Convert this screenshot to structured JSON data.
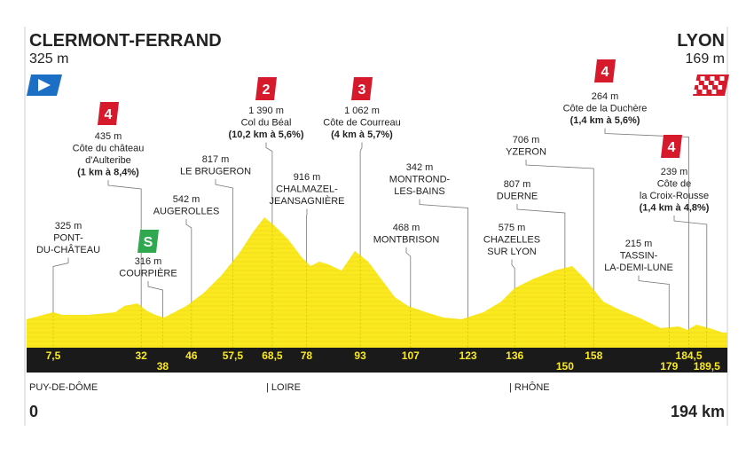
{
  "start": {
    "name": "CLERMONT-FERRAND",
    "altitude": "325 m",
    "km": 0
  },
  "finish": {
    "name": "LYON",
    "altitude": "169 m",
    "km": {
      "value": 194,
      "label": "194 km"
    }
  },
  "regions": [
    "PUY-DE-DÔME",
    "| LOIRE",
    "| RHÔNE"
  ],
  "points": [
    {
      "km": {
        "value": 7.5,
        "label": "7,5"
      },
      "lines": [
        "325 m",
        "PONT-",
        "DU-CHÂTEAU"
      ]
    },
    {
      "km": 32,
      "badge": "4",
      "lines": [
        "435 m",
        "Côte du château",
        "d'Aulteribe"
      ],
      "detail": "(1 km à 8,4%)"
    },
    {
      "km": 38,
      "badge": "S",
      "lines": [
        "316 m",
        "COURPIÈRE"
      ]
    },
    {
      "km": 46,
      "lines": [
        "542 m",
        "AUGEROLLES"
      ]
    },
    {
      "km": {
        "value": 57.5,
        "label": "57,5"
      },
      "lines": [
        "817 m",
        "LE BRUGERON"
      ]
    },
    {
      "km": {
        "value": 68.5,
        "label": "68,5"
      },
      "badge": "2",
      "lines": [
        "1 390 m",
        "Col du Béal"
      ],
      "detail": "(10,2 km à 5,6%)"
    },
    {
      "km": 78,
      "lines": [
        "916 m",
        "CHALMAZEL-",
        "JEANSAGNIÈRE"
      ]
    },
    {
      "km": 93,
      "badge": "3",
      "lines": [
        "1 062 m",
        "Côte de Courreau"
      ],
      "detail": "(4 km à 5,7%)"
    },
    {
      "km": 107,
      "lines": [
        "468 m",
        "MONTBRISON"
      ]
    },
    {
      "km": 123,
      "lines": [
        "342 m",
        "MONTROND-",
        "LES-BAINS"
      ]
    },
    {
      "km": 136,
      "lines": [
        "575 m",
        "CHAZELLES",
        "SUR LYON"
      ]
    },
    {
      "km": 150,
      "lines": [
        "807 m",
        "DUERNE"
      ]
    },
    {
      "km": 158,
      "lines": [
        "706 m",
        "YZERON"
      ]
    },
    {
      "km": 179,
      "lines": [
        "215 m",
        "TASSIN-",
        "LA-DEMI-LUNE"
      ]
    },
    {
      "km": {
        "value": 184.5,
        "label": "184,5"
      },
      "badge": "4",
      "lines": [
        "264 m",
        "Côte de la Duchère"
      ],
      "detail": "(1,4 km à 5,6%)"
    },
    {
      "km": {
        "value": 189.5,
        "label": "189,5"
      },
      "badge": "4",
      "lines": [
        "239 m",
        "Côte de",
        "la Croix-Rousse"
      ],
      "detail": "(1,4 km à 4,8%)"
    }
  ]
}
